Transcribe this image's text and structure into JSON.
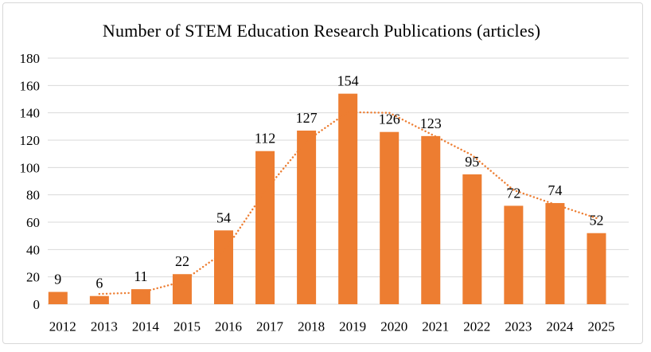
{
  "chart_data": {
    "type": "bar",
    "title": "Number of STEM Education Research Publications (articles)",
    "categories": [
      "2012",
      "2013",
      "2014",
      "2015",
      "2016",
      "2017",
      "2018",
      "2019",
      "2020",
      "2021",
      "2022",
      "2023",
      "2024",
      "2025"
    ],
    "values": [
      9,
      6,
      11,
      22,
      54,
      112,
      127,
      154,
      126,
      123,
      95,
      72,
      74,
      52
    ],
    "xlabel": "",
    "ylabel": "",
    "ylim": [
      0,
      180
    ],
    "y_ticks": [
      0,
      20,
      40,
      60,
      80,
      100,
      120,
      140,
      160,
      180
    ],
    "grid": "horizontal",
    "legend": "none",
    "bar_color": "#ED7D31",
    "grid_color": "#D9D9D9",
    "text_color": "#000000",
    "trendline": {
      "type": "moving_average",
      "period": 2,
      "style": "dotted",
      "color": "#ED7D31",
      "categories": [
        "2013",
        "2014",
        "2015",
        "2016",
        "2017",
        "2018",
        "2019",
        "2020",
        "2021",
        "2022",
        "2023",
        "2024",
        "2025"
      ],
      "values": [
        7.5,
        8.5,
        16.5,
        38,
        83,
        119.5,
        140.5,
        140,
        124.5,
        109,
        83.5,
        73,
        63
      ]
    }
  }
}
